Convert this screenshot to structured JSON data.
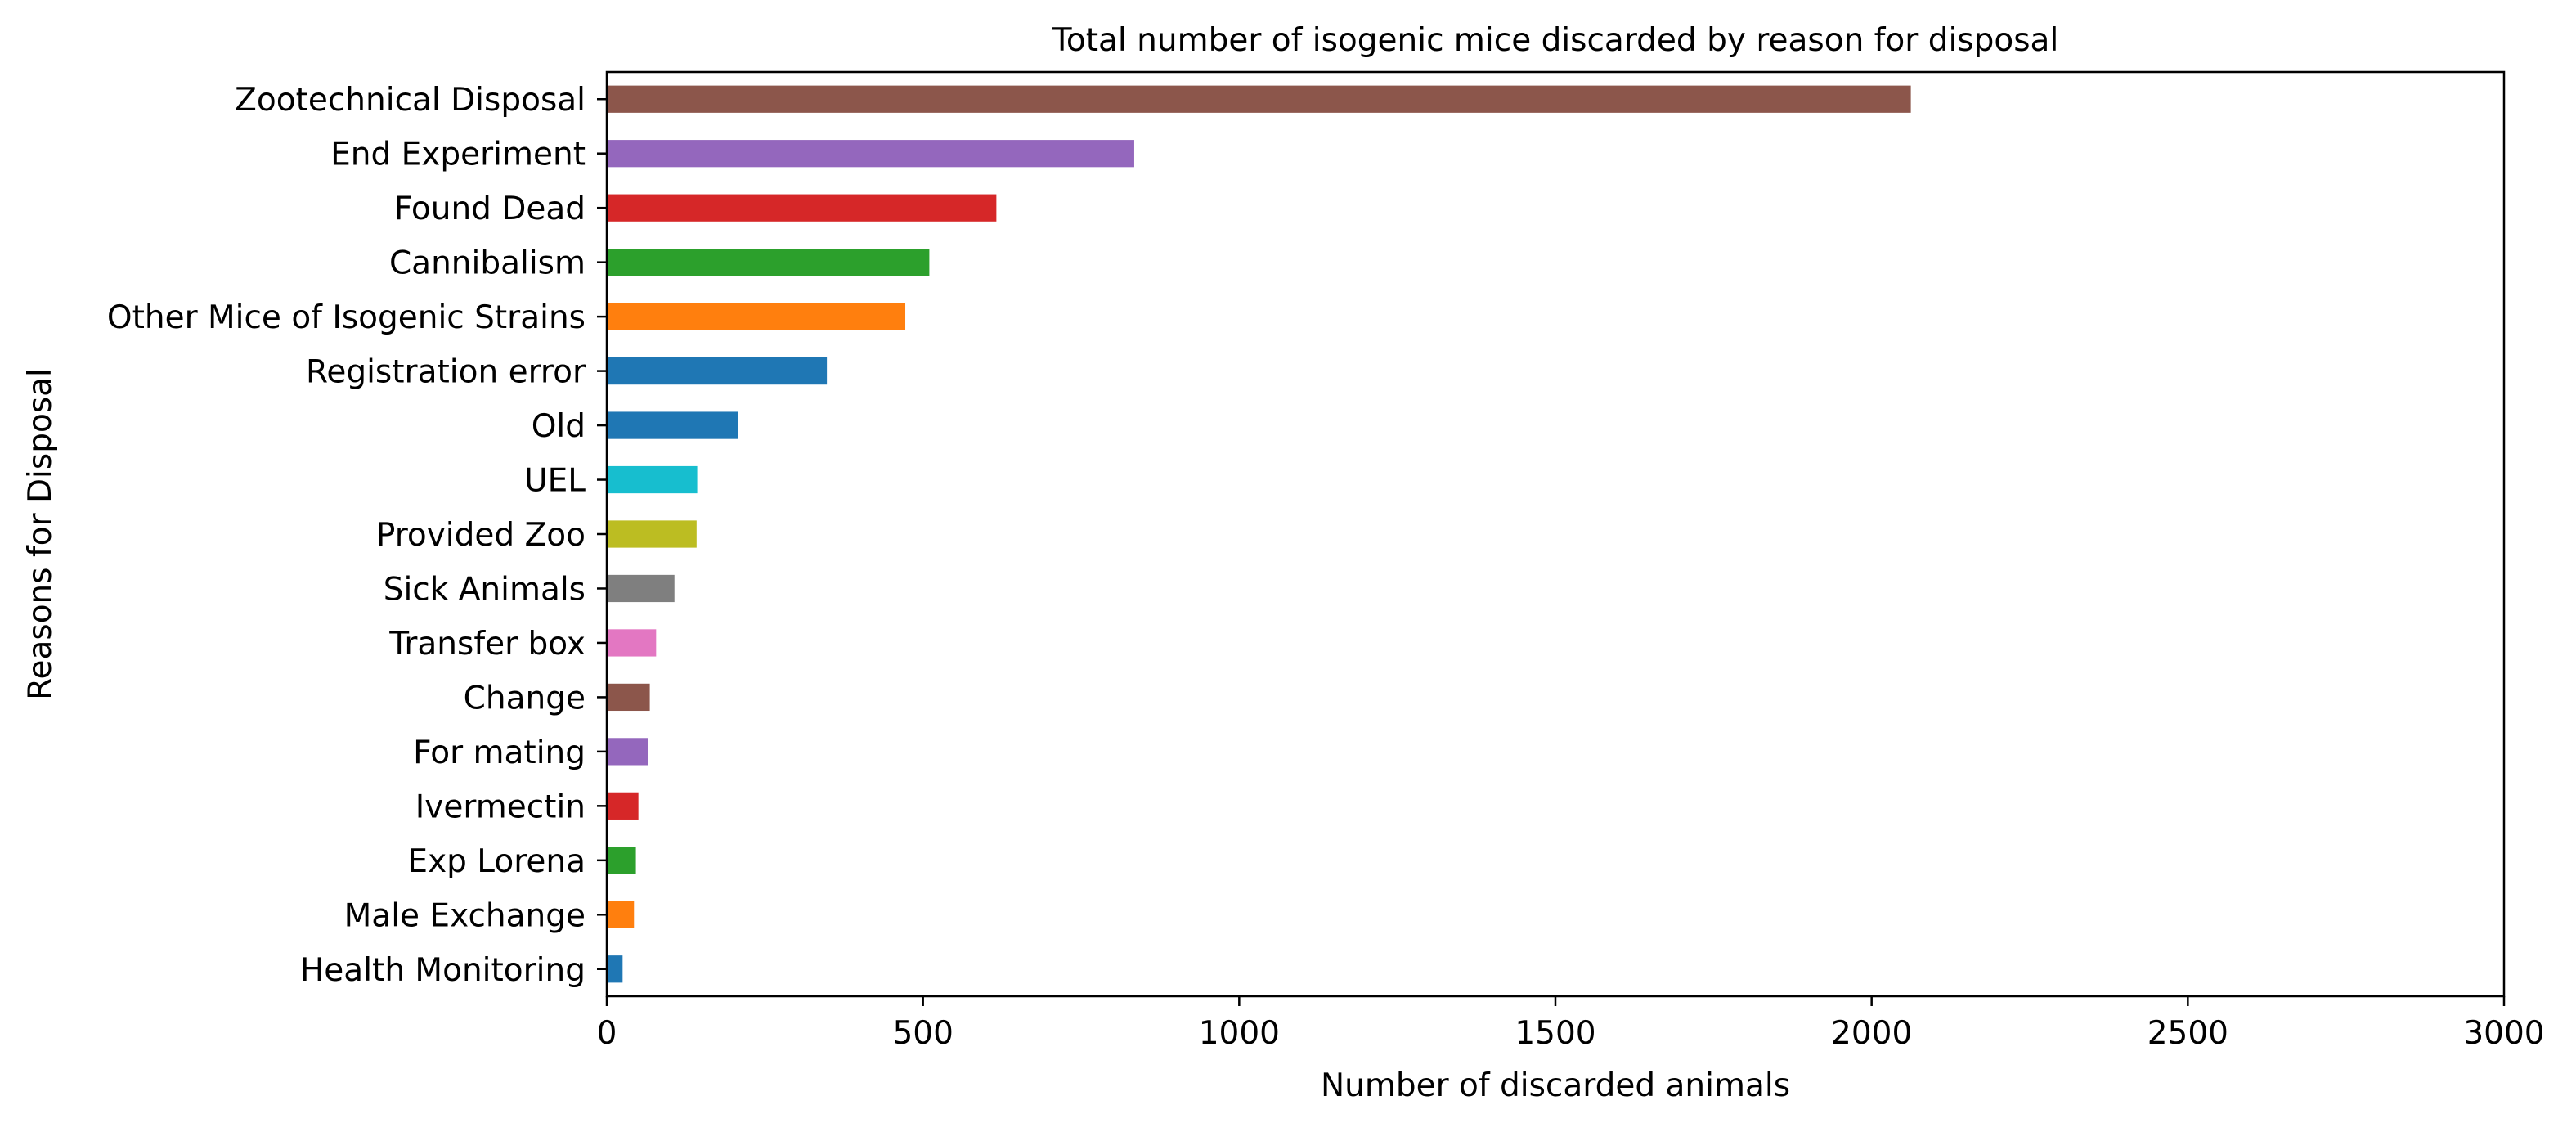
{
  "chart_data": {
    "type": "bar",
    "orientation": "horizontal",
    "title": "Total number of isogenic mice discarded by reason for disposal",
    "xlabel": "Number of discarded animals",
    "ylabel": "Reasons for Disposal",
    "xlim": [
      0,
      3000
    ],
    "xticks": [
      0,
      500,
      1000,
      1500,
      2000,
      2500,
      3000
    ],
    "grid": false,
    "legend": "none",
    "categories": [
      "Zootechnical Disposal",
      "End Experiment",
      "Found Dead",
      "Cannibalism",
      "Other Mice of Isogenic Strains",
      "Registration error",
      "Old",
      "UEL",
      "Provided Zoo",
      "Sick Animals",
      "Transfer box",
      "Change",
      "For mating",
      "Ivermectin",
      "Exp Lorena",
      "Male Exchange",
      "Health Monitoring"
    ],
    "values": [
      2062,
      834,
      616,
      510,
      472,
      348,
      207,
      143,
      142,
      107,
      78,
      68,
      65,
      50,
      46,
      43,
      25
    ],
    "colors": [
      "#8c564b",
      "#9467bd",
      "#d62728",
      "#2ca02c",
      "#ff7f0e",
      "#1f77b4",
      "#1f77b4",
      "#17becf",
      "#bcbd22",
      "#7f7f7f",
      "#e377c2",
      "#8c564b",
      "#9467bd",
      "#d62728",
      "#2ca02c",
      "#ff7f0e",
      "#1f77b4"
    ]
  }
}
